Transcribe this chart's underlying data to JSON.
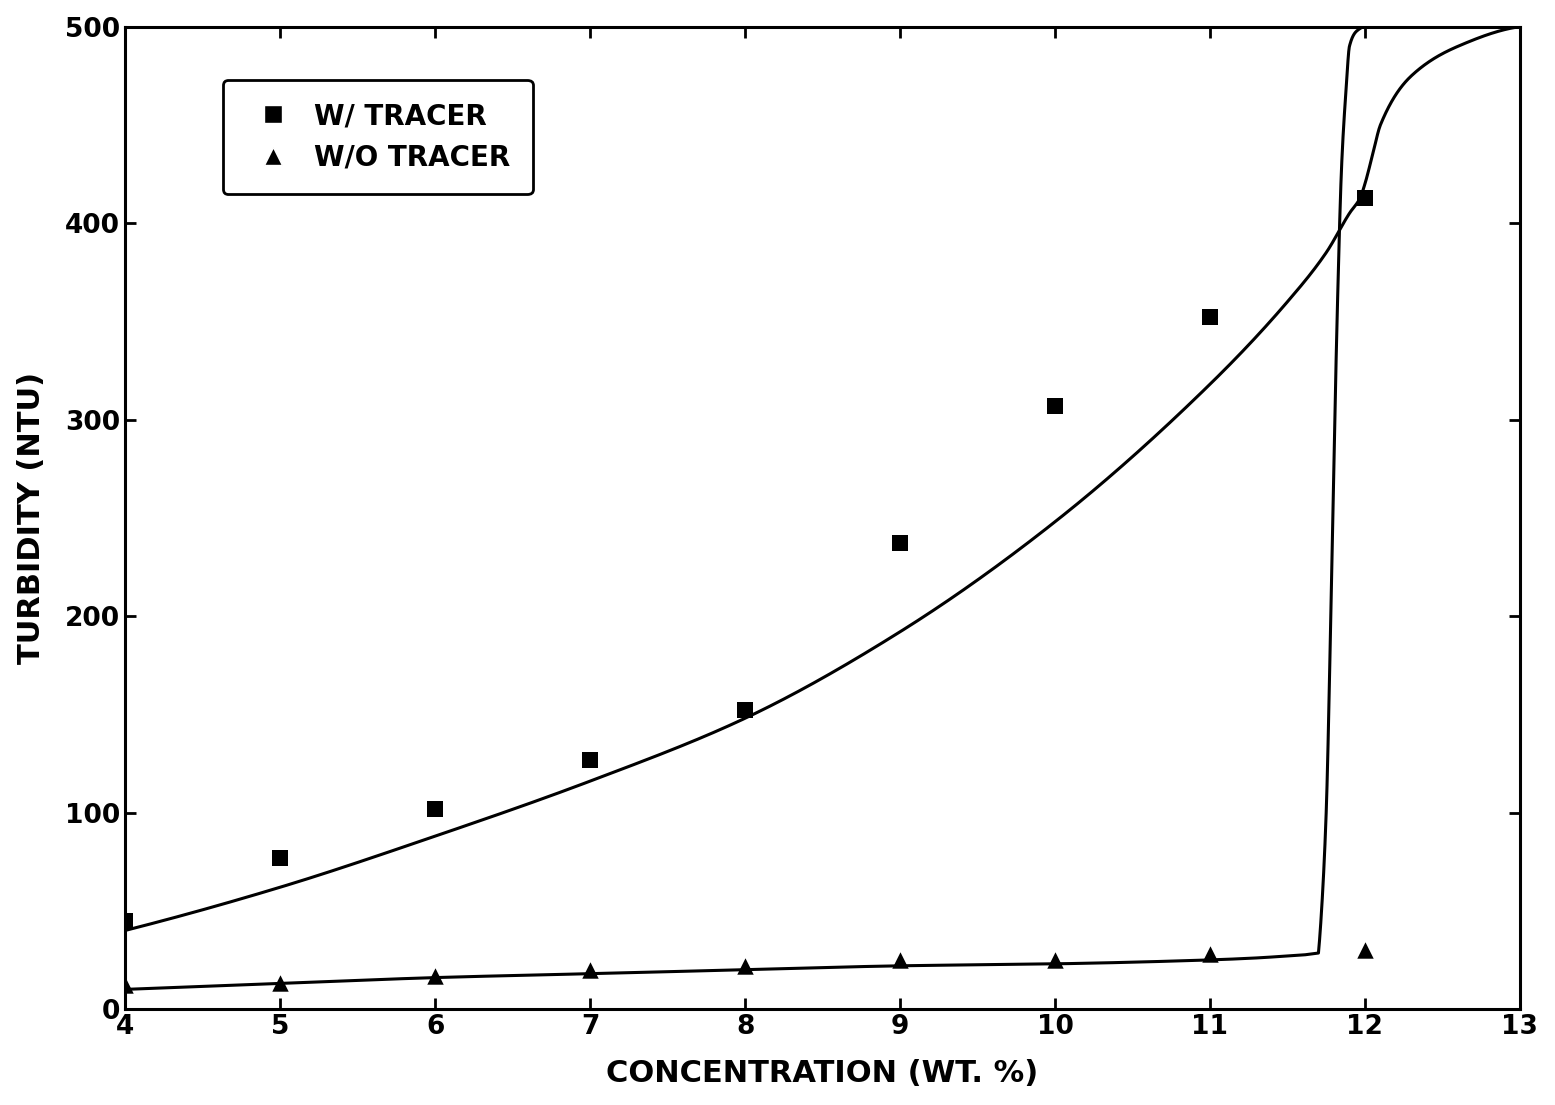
{
  "title": "",
  "xlabel": "CONCENTRATION (WT. %)",
  "ylabel": "TURBIDITY (NTU)",
  "xlim": [
    4,
    13
  ],
  "ylim": [
    0,
    500
  ],
  "xticks": [
    4,
    5,
    6,
    7,
    8,
    9,
    10,
    11,
    12,
    13
  ],
  "yticks": [
    0,
    100,
    200,
    300,
    400,
    500
  ],
  "w_tracer_x": [
    4,
    5,
    6,
    7,
    8,
    9,
    10,
    11,
    12
  ],
  "w_tracer_y": [
    45,
    77,
    102,
    127,
    152,
    237,
    307,
    352,
    413
  ],
  "wo_tracer_x": [
    4,
    5,
    6,
    7,
    8,
    9,
    10,
    11,
    12
  ],
  "wo_tracer_y": [
    12,
    13,
    17,
    20,
    22,
    25,
    25,
    28,
    30
  ],
  "background_color": "#ffffff",
  "line_color": "#000000",
  "marker_color": "#000000",
  "legend_label1": "W/ TRACER",
  "legend_label2": "W/O TRACER",
  "figsize": [
    15.55,
    11.05
  ],
  "dpi": 100
}
